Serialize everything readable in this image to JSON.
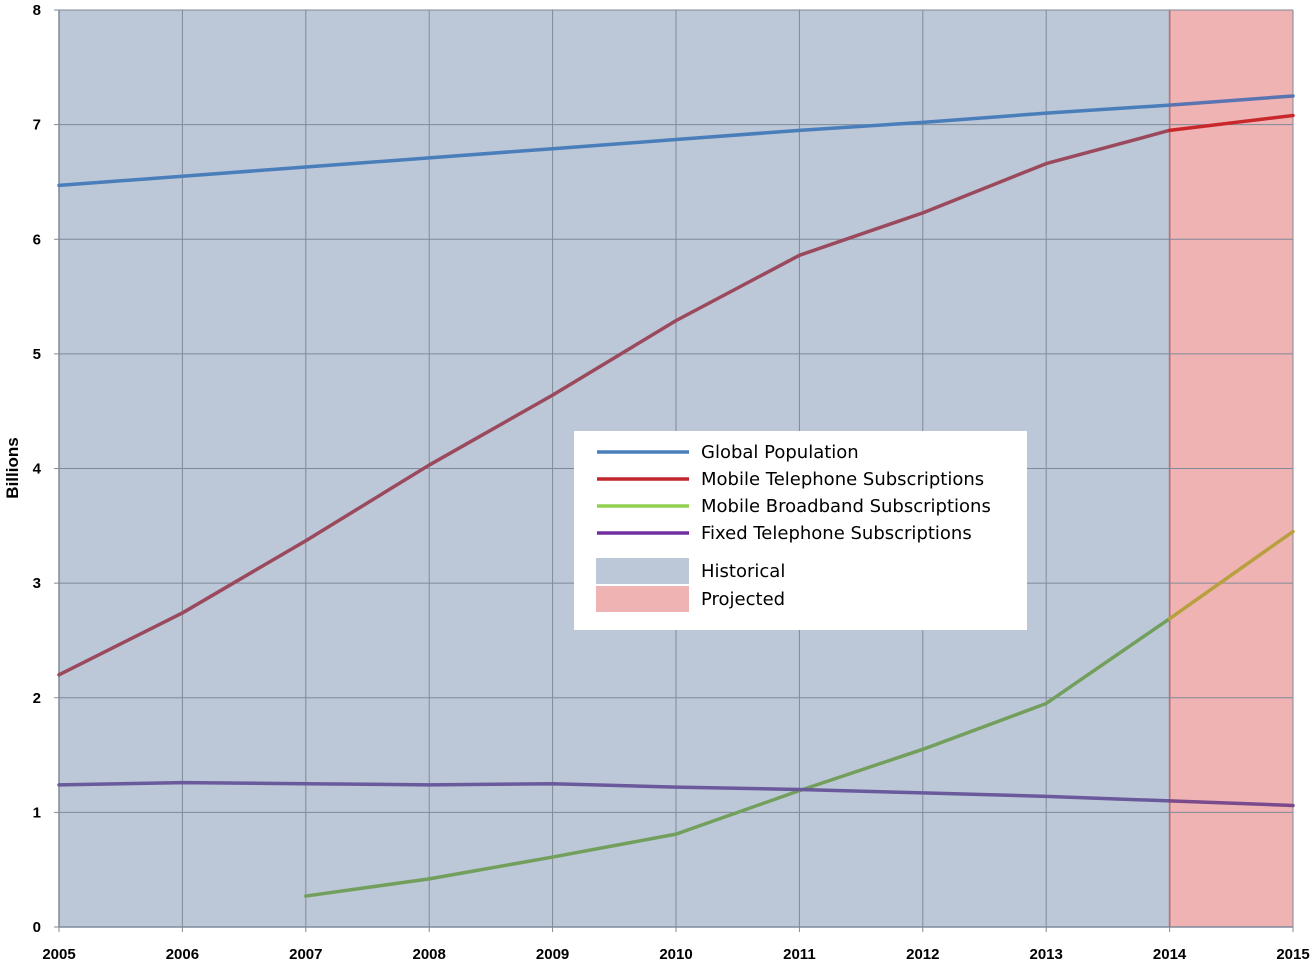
{
  "chart_data": {
    "type": "line",
    "title": "",
    "xlabel": "",
    "ylabel": "Billions",
    "xlim": [
      2005,
      2015
    ],
    "ylim": [
      0,
      8
    ],
    "x_ticks": [
      "2005",
      "2006",
      "2007",
      "2008",
      "2009",
      "2010",
      "2011",
      "2012",
      "2013",
      "2014",
      "2015"
    ],
    "y_ticks": [
      "0",
      "1",
      "2",
      "3",
      "4",
      "5",
      "6",
      "7",
      "8"
    ],
    "grid": true,
    "legend_position": "center",
    "regions": [
      {
        "label": "Historical",
        "from": 2005,
        "to": 2014,
        "color": "#bcc7d8"
      },
      {
        "label": "Projected",
        "from": 2014,
        "to": 2015,
        "color": "#efb3b3"
      }
    ],
    "series": [
      {
        "name": "Global Population",
        "legend_color": "#4a7ebb",
        "color": "#4a7ebb",
        "projected_color": "#5a74b2",
        "x": [
          2005,
          2006,
          2007,
          2008,
          2009,
          2010,
          2011,
          2012,
          2013,
          2014,
          2015
        ],
        "y": [
          6.47,
          6.55,
          6.63,
          6.71,
          6.79,
          6.87,
          6.95,
          7.02,
          7.1,
          7.17,
          7.25
        ]
      },
      {
        "name": "Mobile Telephone Subscriptions",
        "legend_color": "#c0262c",
        "color": "#9a4a5c",
        "projected_color": "#c8282c",
        "x": [
          2005,
          2006,
          2007,
          2008,
          2009,
          2010,
          2011,
          2012,
          2013,
          2014,
          2015
        ],
        "y": [
          2.2,
          2.74,
          3.37,
          4.03,
          4.64,
          5.29,
          5.86,
          6.23,
          6.66,
          6.95,
          7.08
        ]
      },
      {
        "name": "Mobile Broadband Subscriptions",
        "legend_color": "#92d050",
        "color": "#72a05c",
        "projected_color": "#b8a040",
        "x": [
          2007,
          2008,
          2009,
          2010,
          2011,
          2012,
          2013,
          2014,
          2015
        ],
        "y": [
          0.27,
          0.42,
          0.61,
          0.81,
          1.19,
          1.55,
          1.95,
          2.69,
          3.45
        ]
      },
      {
        "name": "Fixed Telephone Subscriptions",
        "legend_color": "#7030a0",
        "color": "#6a5a9c",
        "projected_color": "#7a4a8c",
        "x": [
          2005,
          2006,
          2007,
          2008,
          2009,
          2010,
          2011,
          2012,
          2013,
          2014,
          2015
        ],
        "y": [
          1.24,
          1.26,
          1.25,
          1.24,
          1.25,
          1.22,
          1.2,
          1.17,
          1.14,
          1.1,
          1.06
        ]
      }
    ]
  }
}
